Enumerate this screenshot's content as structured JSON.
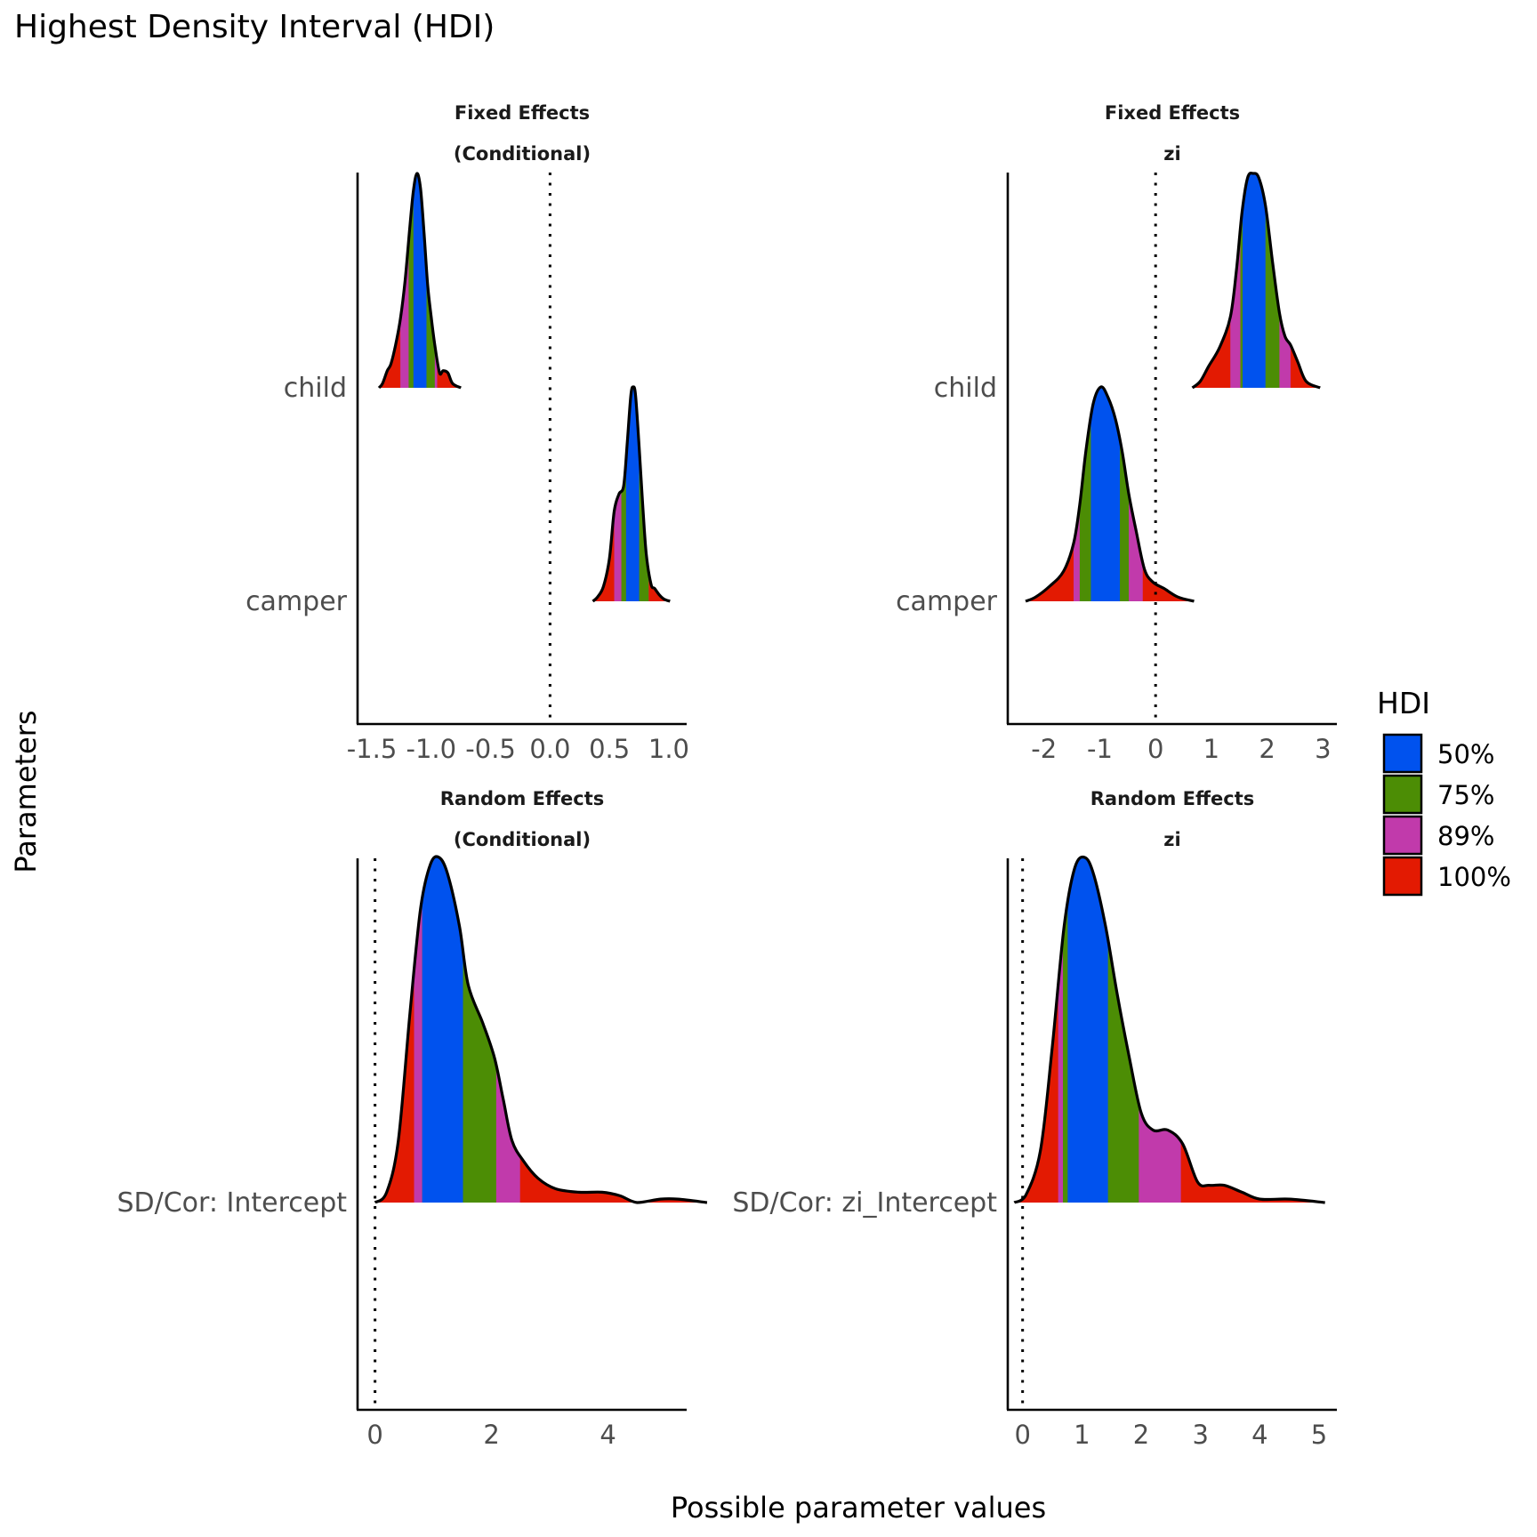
{
  "chart_data": {
    "type": "area",
    "subtype": "ridgeline-density-hdi",
    "title": "Highest Density Interval (HDI)",
    "xlabel": "Possible parameter values",
    "ylabel": "Parameters",
    "legend": {
      "title": "HDI",
      "position": "right",
      "items": [
        {
          "label": "50%",
          "color": "#0052EE"
        },
        {
          "label": "75%",
          "color": "#4C8D05"
        },
        {
          "label": "89%",
          "color": "#C13AAB"
        },
        {
          "label": "100%",
          "color": "#E31A02"
        }
      ]
    },
    "reference_line": {
      "x": 0,
      "style": "dotted"
    },
    "panels": [
      {
        "strip": [
          "Fixed Effects",
          "(Conditional)"
        ],
        "xlim": [
          -1.62,
          1.15
        ],
        "xticks": [
          -1.5,
          -1.0,
          -0.5,
          0.0,
          0.5,
          1.0
        ],
        "xtick_labels": [
          "-1.5",
          "-1.0",
          "-0.5",
          "0.0",
          "0.5",
          "1.0"
        ],
        "rows": [
          {
            "label": "child",
            "hdi": {
              "100": [
                -1.44,
                -0.75
              ],
              "89": [
                -1.26,
                -0.95
              ],
              "75": [
                -1.19,
                -0.97
              ],
              "50": [
                -1.15,
                -1.04
              ]
            },
            "density": [
              [
                -1.44,
                0
              ],
              [
                -1.41,
                0.02
              ],
              [
                -1.37,
                0.08
              ],
              [
                -1.34,
                0.11
              ],
              [
                -1.3,
                0.2
              ],
              [
                -1.26,
                0.32
              ],
              [
                -1.22,
                0.5
              ],
              [
                -1.18,
                0.75
              ],
              [
                -1.15,
                0.92
              ],
              [
                -1.12,
                1.0
              ],
              [
                -1.09,
                0.93
              ],
              [
                -1.06,
                0.72
              ],
              [
                -1.03,
                0.48
              ],
              [
                -1.0,
                0.33
              ],
              [
                -0.97,
                0.2
              ],
              [
                -0.93,
                0.07
              ],
              [
                -0.9,
                0.08
              ],
              [
                -0.86,
                0.07
              ],
              [
                -0.82,
                0.02
              ],
              [
                -0.75,
                0
              ]
            ]
          },
          {
            "label": "camper",
            "hdi": {
              "100": [
                0.36,
                1.01
              ],
              "89": [
                0.54,
                0.83
              ],
              "75": [
                0.6,
                0.83
              ],
              "50": [
                0.64,
                0.75
              ]
            },
            "density": [
              [
                0.36,
                0
              ],
              [
                0.4,
                0.02
              ],
              [
                0.45,
                0.07
              ],
              [
                0.5,
                0.2
              ],
              [
                0.54,
                0.42
              ],
              [
                0.58,
                0.5
              ],
              [
                0.62,
                0.54
              ],
              [
                0.65,
                0.74
              ],
              [
                0.68,
                0.96
              ],
              [
                0.7,
                1.0
              ],
              [
                0.72,
                0.96
              ],
              [
                0.75,
                0.72
              ],
              [
                0.78,
                0.45
              ],
              [
                0.81,
                0.22
              ],
              [
                0.85,
                0.08
              ],
              [
                0.88,
                0.06
              ],
              [
                0.92,
                0.03
              ],
              [
                0.96,
                0.01
              ],
              [
                1.01,
                0
              ]
            ]
          }
        ]
      },
      {
        "strip": [
          "Fixed Effects",
          "zi"
        ],
        "xlim": [
          -2.65,
          3.25
        ],
        "xticks": [
          -2,
          -1,
          0,
          1,
          2,
          3
        ],
        "xtick_labels": [
          "-2",
          "-1",
          "0",
          "1",
          "2",
          "3"
        ],
        "rows": [
          {
            "label": "child",
            "hdi": {
              "100": [
                0.66,
                2.95
              ],
              "89": [
                1.34,
                2.42
              ],
              "75": [
                1.52,
                2.22
              ],
              "50": [
                1.56,
                1.97
              ]
            },
            "density": [
              [
                0.66,
                0
              ],
              [
                0.8,
                0.03
              ],
              [
                0.95,
                0.1
              ],
              [
                1.15,
                0.19
              ],
              [
                1.34,
                0.33
              ],
              [
                1.45,
                0.55
              ],
              [
                1.55,
                0.82
              ],
              [
                1.65,
                0.98
              ],
              [
                1.75,
                1.0
              ],
              [
                1.85,
                0.98
              ],
              [
                1.97,
                0.85
              ],
              [
                2.1,
                0.58
              ],
              [
                2.22,
                0.35
              ],
              [
                2.32,
                0.24
              ],
              [
                2.42,
                0.2
              ],
              [
                2.55,
                0.12
              ],
              [
                2.7,
                0.03
              ],
              [
                2.95,
                0
              ]
            ]
          },
          {
            "label": "camper",
            "hdi": {
              "100": [
                -2.33,
                0.69
              ],
              "89": [
                -1.47,
                -0.23
              ],
              "75": [
                -1.36,
                -0.48
              ],
              "50": [
                -1.16,
                -0.64
              ]
            },
            "density": [
              [
                -2.33,
                0
              ],
              [
                -2.15,
                0.02
              ],
              [
                -1.9,
                0.07
              ],
              [
                -1.65,
                0.14
              ],
              [
                -1.47,
                0.27
              ],
              [
                -1.36,
                0.45
              ],
              [
                -1.25,
                0.7
              ],
              [
                -1.12,
                0.92
              ],
              [
                -0.98,
                1.0
              ],
              [
                -0.85,
                0.95
              ],
              [
                -0.72,
                0.85
              ],
              [
                -0.6,
                0.7
              ],
              [
                -0.48,
                0.5
              ],
              [
                -0.35,
                0.33
              ],
              [
                -0.2,
                0.15
              ],
              [
                -0.05,
                0.09
              ],
              [
                0.15,
                0.06
              ],
              [
                0.4,
                0.02
              ],
              [
                0.69,
                0
              ]
            ]
          }
        ]
      },
      {
        "strip": [
          "Random Effects",
          "(Conditional)"
        ],
        "xlim": [
          -0.3,
          5.35
        ],
        "xticks": [
          0,
          2,
          4
        ],
        "xtick_labels": [
          "0",
          "2",
          "4"
        ],
        "rows": [
          {
            "label": "SD/Cor:  Intercept",
            "hdi": {
              "100": [
                0.0,
                5.7
              ],
              "89": [
                0.67,
                2.49
              ],
              "75": [
                0.81,
                2.08
              ],
              "50": [
                0.81,
                1.51
              ]
            },
            "density": [
              [
                0.0,
                0
              ],
              [
                0.2,
                0.03
              ],
              [
                0.4,
                0.18
              ],
              [
                0.6,
                0.55
              ],
              [
                0.78,
                0.85
              ],
              [
                0.95,
                0.98
              ],
              [
                1.1,
                1.0
              ],
              [
                1.25,
                0.95
              ],
              [
                1.45,
                0.8
              ],
              [
                1.6,
                0.63
              ],
              [
                1.85,
                0.52
              ],
              [
                2.05,
                0.42
              ],
              [
                2.2,
                0.3
              ],
              [
                2.35,
                0.18
              ],
              [
                2.55,
                0.12
              ],
              [
                2.8,
                0.07
              ],
              [
                3.1,
                0.04
              ],
              [
                3.5,
                0.03
              ],
              [
                3.9,
                0.03
              ],
              [
                4.2,
                0.02
              ],
              [
                4.5,
                0.0
              ],
              [
                4.9,
                0.01
              ],
              [
                5.2,
                0.01
              ],
              [
                5.7,
                0
              ]
            ]
          }
        ]
      },
      {
        "strip": [
          "Random Effects",
          "zi"
        ],
        "xlim": [
          -0.25,
          5.3
        ],
        "xticks": [
          0,
          1,
          2,
          3,
          4,
          5
        ],
        "xtick_labels": [
          "0",
          "1",
          "2",
          "3",
          "4",
          "5"
        ],
        "rows": [
          {
            "label": "SD/Cor:  zi_Intercept",
            "hdi": {
              "100": [
                -0.14,
                5.1
              ],
              "89": [
                0.6,
                2.67
              ],
              "75": [
                0.68,
                1.96
              ],
              "50": [
                0.76,
                1.44
              ]
            },
            "density": [
              [
                -0.14,
                0
              ],
              [
                0.05,
                0.02
              ],
              [
                0.3,
                0.15
              ],
              [
                0.5,
                0.45
              ],
              [
                0.7,
                0.8
              ],
              [
                0.88,
                0.97
              ],
              [
                1.05,
                1.0
              ],
              [
                1.2,
                0.95
              ],
              [
                1.4,
                0.8
              ],
              [
                1.6,
                0.6
              ],
              [
                1.8,
                0.42
              ],
              [
                2.0,
                0.26
              ],
              [
                2.2,
                0.21
              ],
              [
                2.45,
                0.21
              ],
              [
                2.7,
                0.17
              ],
              [
                2.95,
                0.06
              ],
              [
                3.15,
                0.05
              ],
              [
                3.4,
                0.05
              ],
              [
                3.7,
                0.03
              ],
              [
                4.0,
                0.01
              ],
              [
                4.5,
                0.01
              ],
              [
                5.1,
                0
              ]
            ]
          }
        ]
      }
    ]
  }
}
